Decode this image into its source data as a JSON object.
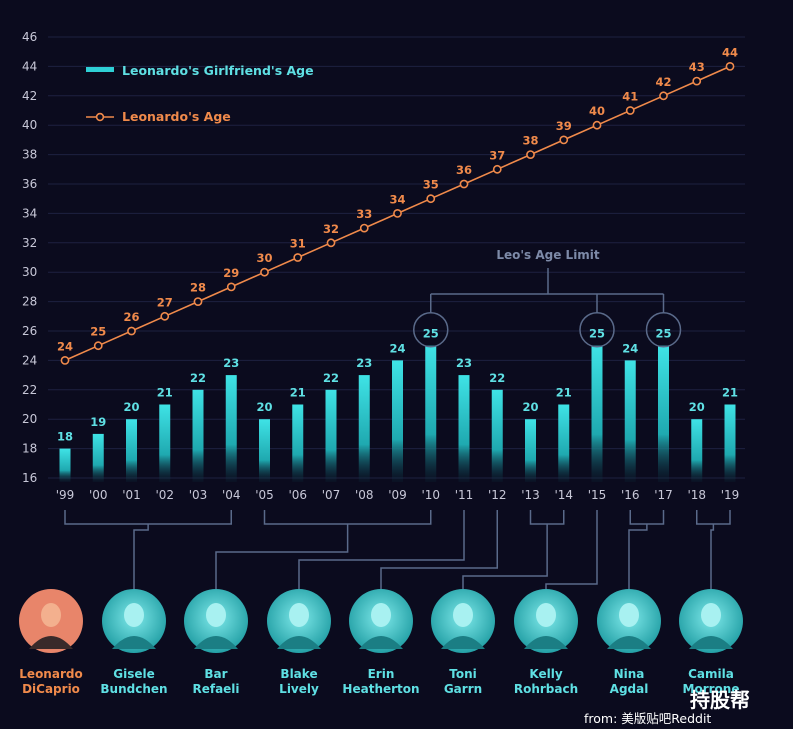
{
  "chart_data": {
    "type": "bar+line",
    "categories": [
      "'99",
      "'00",
      "'01",
      "'02",
      "'03",
      "'04",
      "'05",
      "'06",
      "'07",
      "'08",
      "'09",
      "'10",
      "'11",
      "'12",
      "'13",
      "'14",
      "'15",
      "'16",
      "'17",
      "'18",
      "'19"
    ],
    "series": [
      {
        "name": "Leonardo's Girlfriend's Age",
        "type": "bar",
        "values": [
          18,
          19,
          20,
          21,
          22,
          23,
          20,
          21,
          22,
          23,
          24,
          25,
          23,
          22,
          20,
          21,
          25,
          24,
          25,
          20,
          21
        ]
      },
      {
        "name": "Leonardo's Age",
        "type": "line",
        "values": [
          24,
          25,
          26,
          27,
          28,
          29,
          30,
          31,
          32,
          33,
          34,
          35,
          36,
          37,
          38,
          39,
          40,
          41,
          42,
          43,
          44
        ]
      }
    ],
    "ylim": [
      16,
      46
    ],
    "yticks": [
      16,
      18,
      20,
      22,
      24,
      26,
      28,
      30,
      32,
      34,
      36,
      38,
      40,
      42,
      44,
      46
    ],
    "grid": true,
    "legend": "top-left",
    "annotation": "Leo's Age Limit",
    "limit_value": 25
  },
  "colors": {
    "background": "#0b0b1e",
    "bar": "#2fd0d6",
    "line": "#f08a4b",
    "connector": "#5a6a8a",
    "text_cyan": "#5fe0e4",
    "text_orange": "#f08a4b",
    "avatar_cyan": "#2ab8bc",
    "avatar_orange": "#e8856a"
  },
  "people": [
    {
      "first": "Leonardo",
      "last": "DiCaprio",
      "highlight": true
    },
    {
      "first": "Gisele",
      "last": "Bundchen"
    },
    {
      "first": "Bar",
      "last": "Refaeli"
    },
    {
      "first": "Blake",
      "last": "Lively"
    },
    {
      "first": "Erin",
      "last": "Heatherton"
    },
    {
      "first": "Toni",
      "last": "Garrn"
    },
    {
      "first": "Kelly",
      "last": "Rohrbach"
    },
    {
      "first": "Nina",
      "last": "Agdal"
    },
    {
      "first": "Camila",
      "last": "Morrone"
    }
  ],
  "footer": {
    "source": "from: 美版贴吧Reddit",
    "brand": "持股帮"
  }
}
